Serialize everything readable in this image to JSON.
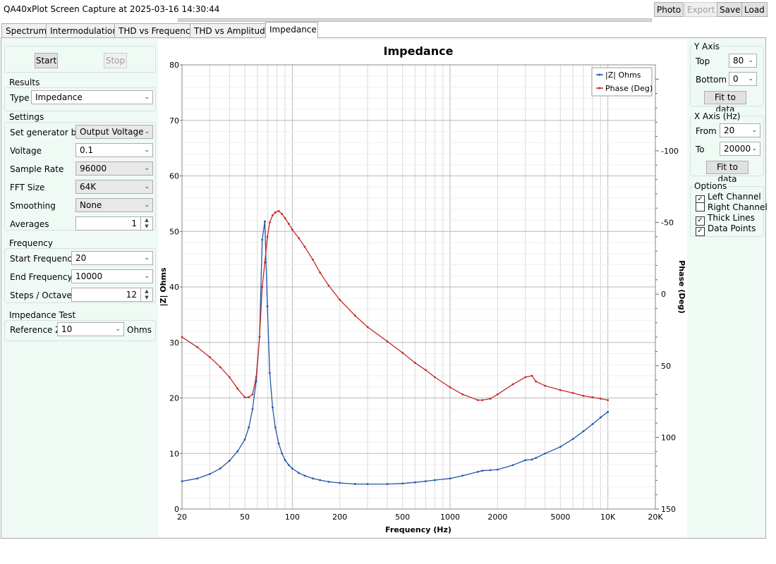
{
  "window": {
    "title": "QA40xPlot Screen Capture at 2025-03-16 14:30:44"
  },
  "toolbar": {
    "photo": "Photo",
    "export": "Export",
    "save": "Save",
    "load": "Load"
  },
  "tabs": [
    {
      "label": "Spectrum"
    },
    {
      "label": "Intermodulation"
    },
    {
      "label": "THD vs Frequency"
    },
    {
      "label": "THD vs Amplitude"
    },
    {
      "label": "Impedance",
      "active": true
    }
  ],
  "controls": {
    "start": "Start",
    "stop": "Stop"
  },
  "results": {
    "title": "Results",
    "type_label": "Type",
    "type_value": "Impedance"
  },
  "settings": {
    "title": "Settings",
    "generator_label": "Set generator by",
    "generator_value": "Output Voltage",
    "voltage_label": "Voltage",
    "voltage_value": "0.1",
    "sample_rate_label": "Sample Rate",
    "sample_rate_value": "96000",
    "fft_label": "FFT Size",
    "fft_value": "64K",
    "smoothing_label": "Smoothing",
    "smoothing_value": "None",
    "averages_label": "Averages",
    "averages_value": "1"
  },
  "frequency": {
    "title": "Frequency",
    "start_label": "Start Frequency",
    "start_value": "20",
    "end_label": "End Frequency",
    "end_value": "10000",
    "steps_label": "Steps / Octave",
    "steps_value": "12"
  },
  "impedance_test": {
    "title": "Impedance Test",
    "refz_label": "Reference Z",
    "refz_value": "10",
    "unit": "Ohms"
  },
  "y_axis": {
    "title": "Y Axis",
    "top_label": "Top",
    "top_value": "80",
    "bottom_label": "Bottom",
    "bottom_value": "0",
    "fit": "Fit to data"
  },
  "x_axis": {
    "title": "X Axis (Hz)",
    "from_label": "From",
    "from_value": "20",
    "to_label": "To",
    "to_value": "20000",
    "fit": "Fit to data"
  },
  "options": {
    "title": "Options",
    "items": [
      {
        "label": "Left Channel",
        "checked": true
      },
      {
        "label": "Right Channel",
        "checked": false
      },
      {
        "label": "Thick Lines",
        "checked": true
      },
      {
        "label": "Data Points",
        "checked": true
      }
    ]
  },
  "colors": {
    "impedance": "#2255aa",
    "phase": "#c62828",
    "grid": "#d9d9d9",
    "grid_major": "#b8b8b8"
  },
  "chart_data": {
    "type": "line",
    "title": "Impedance",
    "xlabel": "Frequency (Hz)",
    "ylabel": "|Z| Ohms",
    "y2label": "Phase (Deg)",
    "xscale": "log",
    "xlim": [
      20,
      20000
    ],
    "ylim": [
      0,
      80
    ],
    "y2lim": [
      -160,
      150
    ],
    "y2_inverted": true,
    "x_ticks": [
      "20",
      "50",
      "100",
      "200",
      "500",
      "1000",
      "2000",
      "5000",
      "10K",
      "20K"
    ],
    "x_tick_values": [
      20,
      50,
      100,
      200,
      500,
      1000,
      2000,
      5000,
      10000,
      20000
    ],
    "y_ticks": [
      0,
      10,
      20,
      30,
      40,
      50,
      60,
      70,
      80
    ],
    "y2_ticks": [
      -100,
      -50,
      0,
      50,
      100,
      150
    ],
    "legend_position": "top-right",
    "grid": true,
    "series": [
      {
        "name": "|Z| Ohms",
        "axis": "left",
        "x": [
          20,
          25,
          30,
          35,
          40,
          45,
          50,
          53,
          56,
          59,
          62,
          64.5,
          67,
          69.5,
          72,
          75,
          78,
          82,
          86,
          90,
          95,
          100,
          110,
          120,
          135,
          150,
          170,
          200,
          250,
          300,
          400,
          500,
          600,
          700,
          800,
          1000,
          1200,
          1500,
          1600,
          1800,
          2000,
          2500,
          3000,
          3300,
          3500,
          4000,
          5000,
          6000,
          7000,
          8000,
          9000,
          10000
        ],
        "y": [
          5.0,
          5.5,
          6.3,
          7.3,
          8.7,
          10.4,
          12.5,
          14.7,
          18.0,
          23.0,
          31.0,
          48.5,
          51.8,
          36.5,
          24.5,
          18.3,
          14.7,
          11.8,
          10.0,
          8.8,
          7.9,
          7.3,
          6.5,
          6.0,
          5.5,
          5.2,
          4.9,
          4.7,
          4.5,
          4.5,
          4.5,
          4.6,
          4.8,
          5.0,
          5.2,
          5.5,
          6.0,
          6.7,
          6.9,
          7.0,
          7.1,
          7.9,
          8.8,
          8.9,
          9.2,
          10.0,
          11.2,
          12.6,
          14.0,
          15.3,
          16.5,
          17.5
        ]
      },
      {
        "name": "Phase (Deg)",
        "axis": "right",
        "x": [
          20,
          25,
          30,
          35,
          40,
          45,
          50,
          53,
          56,
          59,
          62,
          64.5,
          67,
          69.5,
          72,
          75,
          78,
          82,
          86,
          90,
          95,
          100,
          110,
          120,
          135,
          150,
          170,
          200,
          250,
          300,
          400,
          500,
          600,
          700,
          800,
          1000,
          1200,
          1500,
          1600,
          1800,
          2000,
          2500,
          3000,
          3300,
          3500,
          4000,
          5000,
          6000,
          7000,
          8000,
          9000,
          10000
        ],
        "y": [
          30,
          37,
          44,
          51,
          58,
          66,
          72,
          72,
          70,
          58,
          30,
          -5,
          -22,
          -40,
          -50,
          -55,
          -57,
          -58,
          -56,
          -53,
          -49,
          -45,
          -39,
          -33,
          -24,
          -15,
          -6,
          4,
          15,
          23,
          33,
          41,
          48,
          53,
          58,
          65,
          70,
          74,
          74,
          73,
          70,
          63,
          58,
          57,
          61,
          64,
          67,
          69,
          71,
          72,
          73,
          74
        ]
      }
    ]
  }
}
